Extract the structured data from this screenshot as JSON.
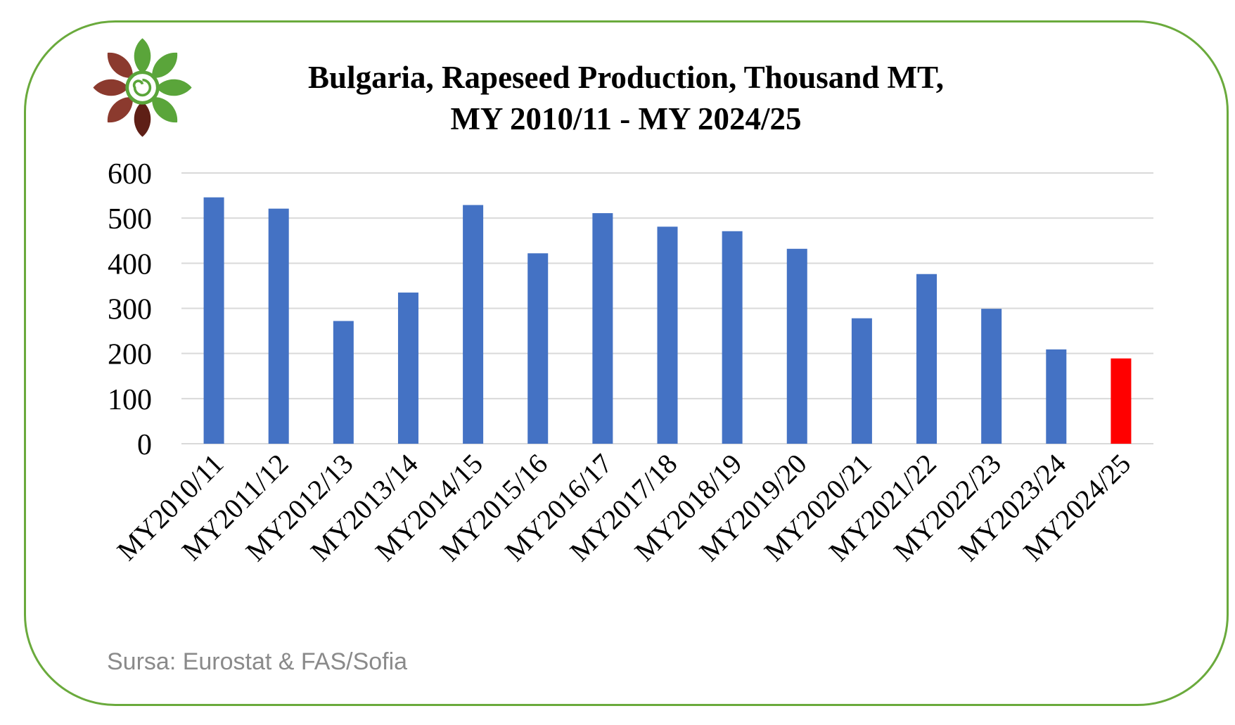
{
  "chart_data": {
    "type": "bar",
    "title": "Bulgaria, Rapeseed Production, Thousand MT,",
    "subtitle": "MY 2010/11 - MY 2024/25",
    "xlabel": "",
    "ylabel": "",
    "categories": [
      "MY2010/11",
      "MY2011/12",
      "MY2012/13",
      "MY2013/14",
      "MY2014/15",
      "MY2015/16",
      "MY2016/17",
      "MY2017/18",
      "MY2018/19",
      "MY2019/20",
      "MY2020/21",
      "MY2021/22",
      "MY2022/23",
      "MY2023/24",
      "MY2024/25"
    ],
    "values": [
      546,
      521,
      272,
      335,
      529,
      422,
      511,
      481,
      471,
      432,
      278,
      376,
      299,
      209,
      189
    ],
    "ylim": [
      0,
      600
    ],
    "yticks": [
      0,
      100,
      200,
      300,
      400,
      500,
      600
    ],
    "grid": true,
    "legend": "none",
    "colors": {
      "bar": "#4472c4",
      "highlight": "#ff0000",
      "highlight_index": 14,
      "grid": "#d9d9d9"
    }
  },
  "source": "Sursa: Eurostat & FAS/Sofia",
  "logo": {
    "icon": "flower-logo-icon",
    "colors": {
      "green": "#5aa53a",
      "brown": "#8b3a2e",
      "dark": "#5e1f16"
    }
  }
}
